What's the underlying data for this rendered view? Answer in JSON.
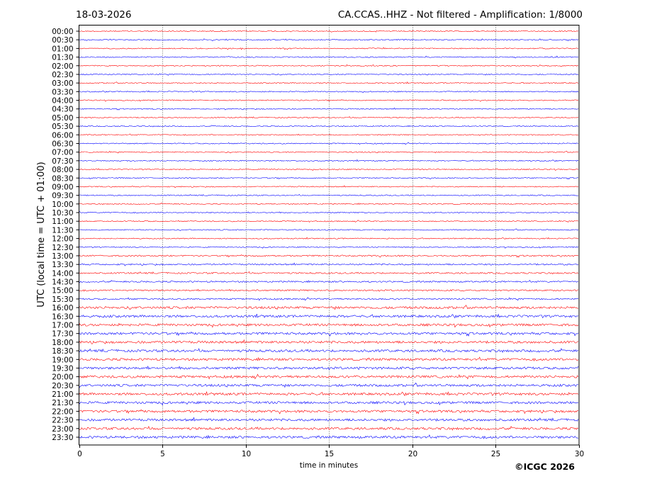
{
  "chart_data": {
    "type": "line",
    "title_left": "18-03-2026",
    "title_right": "CA.CCAS..HHZ - Not filtered - Amplification: 1/8000",
    "xlabel": "time in minutes",
    "ylabel": "UTC (local time = UTC + 01:00)",
    "xlim": [
      0,
      30
    ],
    "x_ticks": [
      "0",
      "5",
      "10",
      "15",
      "20",
      "25",
      "30"
    ],
    "x_tick_values": [
      0,
      5,
      10,
      15,
      20,
      25,
      30
    ],
    "grid": "vertical dotted at 5-minute ticks",
    "row_colors": [
      "#ff0000",
      "#0000ff"
    ],
    "rows": [
      "00:00",
      "00:30",
      "01:00",
      "01:30",
      "02:00",
      "02:30",
      "03:00",
      "03:30",
      "04:00",
      "04:30",
      "05:00",
      "05:30",
      "06:00",
      "06:30",
      "07:00",
      "07:30",
      "08:00",
      "08:30",
      "09:00",
      "09:30",
      "10:00",
      "10:30",
      "11:00",
      "11:30",
      "12:00",
      "12:30",
      "13:00",
      "13:30",
      "14:00",
      "14:30",
      "15:00",
      "15:30",
      "16:00",
      "16:30",
      "17:00",
      "17:30",
      "18:00",
      "18:30",
      "19:00",
      "19:30",
      "20:00",
      "20:30",
      "21:00",
      "21:30",
      "22:00",
      "22:30",
      "23:00",
      "23:30"
    ],
    "noise_level": "low overnight and daytime, higher from ~16:00 to 23:30"
  },
  "footer": {
    "copyright": "©ICGC 2026"
  }
}
